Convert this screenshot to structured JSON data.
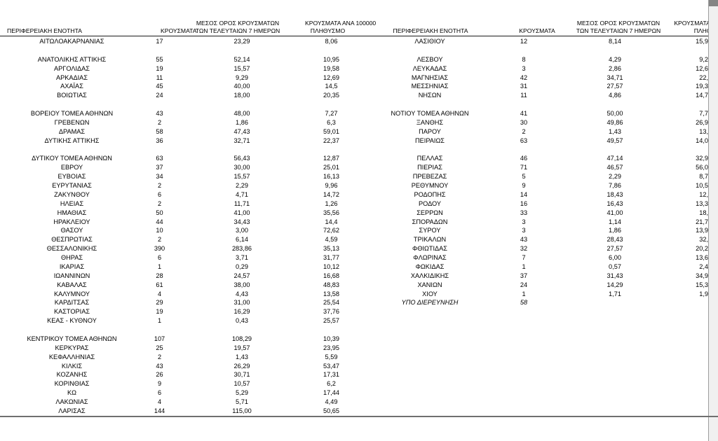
{
  "colors": {
    "background": "#ffffff",
    "text": "#000000",
    "header_rule": "#1a1a1a",
    "bottom_rule": "#6f6f6f",
    "scrollbar_track": "#f0f0f0",
    "scrollbar_thumb": "#848484",
    "scrollbar_border": "#9d9d9d"
  },
  "table": {
    "headers_left": {
      "region": "ΠΕΡΙΦΕΡΕΙΑΚΗ ΕΝΟΤΗΤΑ",
      "cases": "ΚΡΟΥΣΜΑΤΑ",
      "avg7_line1": "ΜΕΣΟΣ ΟΡΟΣ ΚΡΟΥΣΜΑΤΩΝ",
      "avg7_line2": "ΤΩΝ ΤΕΛΕΥΤΑΙΩΝ 7 ΗΜΕΡΩΝ",
      "per100k_line1": "ΚΡΟΥΣΜΑΤΑ ΑΝΑ 100000",
      "per100k_line2": "ΠΛΗΘΥΣΜΟ"
    },
    "headers_right": {
      "region": "ΠΕΡΙΦΕΡΕΙΑΚΗ ΕΝΟΤΗΤΑ",
      "cases": "ΚΡΟΥΣΜΑΤΑ",
      "avg7_line1": "ΜΕΣΟΣ ΟΡΟΣ ΚΡΟΥΣΜΑΤΩΝ",
      "avg7_line2": "ΤΩΝ ΤΕΛΕΥΤΑΙΩΝ 7 ΗΜΕΡΩΝ",
      "per100k_line1_clipped": "ΚΡΟΥΣΜΑΤΑ Α",
      "per100k_line2_clipped": "ΠΛΗΘΥ"
    },
    "left_rows": [
      [
        "ΑΙΤΩΛΟΑΚΑΡΝΑΝΙΑΣ",
        "17",
        "23,29",
        "8,06"
      ],
      null,
      [
        "ΑΝΑΤΟΛΙΚΗΣ ΑΤΤΙΚΗΣ",
        "55",
        "52,14",
        "10,95"
      ],
      [
        "ΑΡΓΟΛΙΔΑΣ",
        "19",
        "15,57",
        "19,58"
      ],
      [
        "ΑΡΚΑΔΙΑΣ",
        "11",
        "9,29",
        "12,69"
      ],
      [
        "ΑΧΑΪΑΣ",
        "45",
        "40,00",
        "14,5"
      ],
      [
        "ΒΟΙΩΤΙΑΣ",
        "24",
        "18,00",
        "20,35"
      ],
      null,
      [
        "ΒΟΡΕΙΟΥ ΤΟΜΕΑ ΑΘΗΝΩΝ",
        "43",
        "48,00",
        "7,27"
      ],
      [
        "ΓΡΕΒΕΝΩΝ",
        "2",
        "1,86",
        "6,3"
      ],
      [
        "ΔΡΑΜΑΣ",
        "58",
        "47,43",
        "59,01"
      ],
      [
        "ΔΥΤΙΚΗΣ ΑΤΤΙΚΗΣ",
        "36",
        "32,71",
        "22,37"
      ],
      null,
      [
        "ΔΥΤΙΚΟΥ ΤΟΜΕΑ ΑΘΗΝΩΝ",
        "63",
        "56,43",
        "12,87"
      ],
      [
        "ΕΒΡΟΥ",
        "37",
        "30,00",
        "25,01"
      ],
      [
        "ΕΥΒΟΙΑΣ",
        "34",
        "15,57",
        "16,13"
      ],
      [
        "ΕΥΡΥΤΑΝΙΑΣ",
        "2",
        "2,29",
        "9,96"
      ],
      [
        "ΖΑΚΥΝΘΟΥ",
        "6",
        "4,71",
        "14,72"
      ],
      [
        "ΗΛΕΙΑΣ",
        "2",
        "11,71",
        "1,26"
      ],
      [
        "ΗΜΑΘΙΑΣ",
        "50",
        "41,00",
        "35,56"
      ],
      [
        "ΗΡΑΚΛΕΙΟΥ",
        "44",
        "34,43",
        "14,4"
      ],
      [
        "ΘΑΣΟΥ",
        "10",
        "3,00",
        "72,62"
      ],
      [
        "ΘΕΣΠΡΩΤΙΑΣ",
        "2",
        "6,14",
        "4,59"
      ],
      [
        "ΘΕΣΣΑΛΟΝΙΚΗΣ",
        "390",
        "283,86",
        "35,13"
      ],
      [
        "ΘΗΡΑΣ",
        "6",
        "3,71",
        "31,77"
      ],
      [
        "ΙΚΑΡΙΑΣ",
        "1",
        "0,29",
        "10,12"
      ],
      [
        "ΙΩΑΝΝΙΝΩΝ",
        "28",
        "24,57",
        "16,68"
      ],
      [
        "ΚΑΒΑΛΑΣ",
        "61",
        "38,00",
        "48,83"
      ],
      [
        "ΚΑΛΥΜΝΟΥ",
        "4",
        "4,43",
        "13,58"
      ],
      [
        "ΚΑΡΔΙΤΣΑΣ",
        "29",
        "31,00",
        "25,54"
      ],
      [
        "ΚΑΣΤΟΡΙΑΣ",
        "19",
        "16,29",
        "37,76"
      ],
      [
        "ΚΕΑΣ - ΚΥΘΝΟΥ",
        "1",
        "0,43",
        "25,57"
      ],
      null,
      [
        "ΚΕΝΤΡΙΚΟΥ ΤΟΜΕΑ ΑΘΗΝΩΝ",
        "107",
        "108,29",
        "10,39"
      ],
      [
        "ΚΕΡΚΥΡΑΣ",
        "25",
        "19,57",
        "23,95"
      ],
      [
        "ΚΕΦΑΛΛΗΝΙΑΣ",
        "2",
        "1,43",
        "5,59"
      ],
      [
        "ΚΙΛΚΙΣ",
        "43",
        "26,29",
        "53,47"
      ],
      [
        "ΚΟΖΑΝΗΣ",
        "26",
        "30,71",
        "17,31"
      ],
      [
        "ΚΟΡΙΝΘΙΑΣ",
        "9",
        "10,57",
        "6,2"
      ],
      [
        "ΚΩ",
        "6",
        "5,29",
        "17,44"
      ],
      [
        "ΛΑΚΩΝΙΑΣ",
        "4",
        "5,71",
        "4,49"
      ],
      [
        "ΛΑΡΙΣΑΣ",
        "144",
        "115,00",
        "50,65"
      ]
    ],
    "right_rows": [
      [
        "ΛΑΣΙΘΙΟΥ",
        "12",
        "8,14",
        "15,9"
      ],
      null,
      [
        "ΛΕΣΒΟΥ",
        "8",
        "4,29",
        "9,2"
      ],
      [
        "ΛΕΥΚΑΔΑΣ",
        "3",
        "2,86",
        "12,6"
      ],
      [
        "ΜΑΓΝΗΣΙΑΣ",
        "42",
        "34,71",
        "22,"
      ],
      [
        "ΜΕΣΣΗΝΙΑΣ",
        "31",
        "27,57",
        "19,3"
      ],
      [
        "ΝΗΣΩΝ",
        "11",
        "4,86",
        "14,7"
      ],
      null,
      [
        "ΝΟΤΙΟΥ ΤΟΜΕΑ ΑΘΗΝΩΝ",
        "41",
        "50,00",
        "7,7"
      ],
      [
        "ΞΑΝΘΗΣ",
        "30",
        "49,86",
        "26,9"
      ],
      [
        "ΠΑΡΟΥ",
        "2",
        "1,43",
        "13,"
      ],
      [
        "ΠΕΙΡΑΙΩΣ",
        "63",
        "49,57",
        "14,0"
      ],
      null,
      [
        "ΠΕΛΛΑΣ",
        "46",
        "47,14",
        "32,9"
      ],
      [
        "ΠΙΕΡΙΑΣ",
        "71",
        "46,57",
        "56,0"
      ],
      [
        "ΠΡΕΒΕΖΑΣ",
        "5",
        "2,29",
        "8,7"
      ],
      [
        "ΡΕΘΥΜΝΟΥ",
        "9",
        "7,86",
        "10,5"
      ],
      [
        "ΡΟΔΟΠΗΣ",
        "14",
        "18,43",
        "12,"
      ],
      [
        "ΡΟΔΟΥ",
        "16",
        "16,43",
        "13,3"
      ],
      [
        "ΣΕΡΡΩΝ",
        "33",
        "41,00",
        "18,"
      ],
      [
        "ΣΠΟΡΑΔΩΝ",
        "3",
        "1,14",
        "21,7"
      ],
      [
        "ΣΥΡΟΥ",
        "3",
        "1,86",
        "13,9"
      ],
      [
        "ΤΡΙΚΑΛΩΝ",
        "43",
        "28,43",
        "32,"
      ],
      [
        "ΦΘΙΩΤΙΔΑΣ",
        "32",
        "27,57",
        "20,2"
      ],
      [
        "ΦΛΩΡΙΝΑΣ",
        "7",
        "6,00",
        "13,6"
      ],
      [
        "ΦΩΚΙΔΑΣ",
        "1",
        "0,57",
        "2,4"
      ],
      [
        "ΧΑΛΚΙΔΙΚΗΣ",
        "37",
        "31,43",
        "34,9"
      ],
      [
        "ΧΑΝΙΩΝ",
        "24",
        "14,29",
        "15,3"
      ],
      [
        "ΧΙΟΥ",
        "1",
        "1,71",
        "1,9"
      ],
      {
        "cells": [
          "ΥΠΟ ΔΙΕΡΕΥΝΗΣΗ",
          "58",
          "",
          ""
        ],
        "italic": true
      },
      null,
      null,
      null,
      null,
      null,
      null,
      null,
      null,
      null,
      null,
      null,
      null
    ]
  }
}
